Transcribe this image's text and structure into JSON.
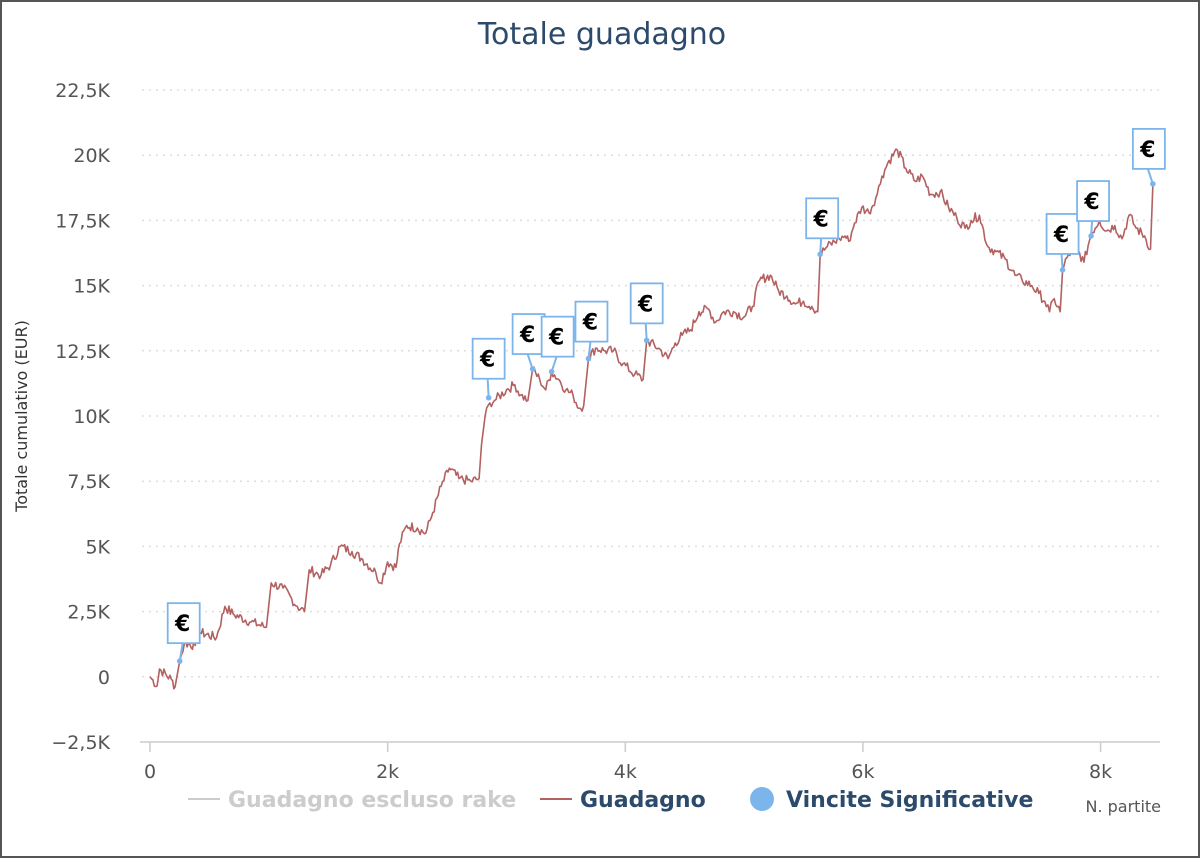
{
  "chart_data": {
    "type": "line",
    "title": "Totale guadagno",
    "ylabel": "Totale cumulativo (EUR)",
    "xlabel": "N. partite",
    "xlim": [
      0,
      8500
    ],
    "ylim": [
      -2500,
      22500
    ],
    "y_ticks": [
      {
        "value": -2500,
        "label": "−2,5K"
      },
      {
        "value": 0,
        "label": "0"
      },
      {
        "value": 2500,
        "label": "2,5K"
      },
      {
        "value": 5000,
        "label": "5K"
      },
      {
        "value": 7500,
        "label": "7,5K"
      },
      {
        "value": 10000,
        "label": "10K"
      },
      {
        "value": 12500,
        "label": "12,5K"
      },
      {
        "value": 15000,
        "label": "15K"
      },
      {
        "value": 17500,
        "label": "17,5K"
      },
      {
        "value": 20000,
        "label": "20K"
      },
      {
        "value": 22500,
        "label": "22,5K"
      }
    ],
    "x_ticks": [
      {
        "value": 0,
        "label": "0"
      },
      {
        "value": 2000,
        "label": "2k"
      },
      {
        "value": 4000,
        "label": "4k"
      },
      {
        "value": 6000,
        "label": "6k"
      },
      {
        "value": 8000,
        "label": "8k"
      }
    ],
    "grid": true,
    "legend_position": "bottom",
    "legend": [
      {
        "name": "Guadagno escluso rake",
        "color": "#cccccc",
        "marker": "line",
        "hidden": true
      },
      {
        "name": "Guadagno",
        "color": "#b36060",
        "marker": "line",
        "hidden": false
      },
      {
        "name": "Vincite Significative",
        "color": "#7cb5ec",
        "marker": "circle",
        "hidden": false
      }
    ],
    "series": [
      {
        "name": "Guadagno",
        "color": "#b36060",
        "points": [
          [
            0,
            0
          ],
          [
            60,
            -350
          ],
          [
            80,
            300
          ],
          [
            180,
            -100
          ],
          [
            210,
            -400
          ],
          [
            250,
            600
          ],
          [
            290,
            1300
          ],
          [
            380,
            1200
          ],
          [
            420,
            1700
          ],
          [
            560,
            1500
          ],
          [
            630,
            2700
          ],
          [
            700,
            2400
          ],
          [
            850,
            2100
          ],
          [
            980,
            1900
          ],
          [
            1020,
            3600
          ],
          [
            1120,
            3400
          ],
          [
            1240,
            2700
          ],
          [
            1300,
            2500
          ],
          [
            1340,
            4100
          ],
          [
            1440,
            3900
          ],
          [
            1520,
            4300
          ],
          [
            1600,
            5000
          ],
          [
            1700,
            4800
          ],
          [
            1790,
            4500
          ],
          [
            1900,
            4000
          ],
          [
            1940,
            3600
          ],
          [
            2000,
            4400
          ],
          [
            2070,
            4200
          ],
          [
            2100,
            5100
          ],
          [
            2160,
            5800
          ],
          [
            2250,
            5700
          ],
          [
            2320,
            5500
          ],
          [
            2380,
            6300
          ],
          [
            2450,
            7300
          ],
          [
            2520,
            8000
          ],
          [
            2600,
            7600
          ],
          [
            2700,
            7500
          ],
          [
            2770,
            7600
          ],
          [
            2790,
            8900
          ],
          [
            2820,
            10000
          ],
          [
            2860,
            10500
          ],
          [
            2900,
            10600
          ],
          [
            3000,
            11000
          ],
          [
            3070,
            11200
          ],
          [
            3120,
            10800
          ],
          [
            3180,
            10600
          ],
          [
            3220,
            11800
          ],
          [
            3280,
            11400
          ],
          [
            3330,
            11000
          ],
          [
            3380,
            11700
          ],
          [
            3440,
            11400
          ],
          [
            3500,
            11000
          ],
          [
            3560,
            10800
          ],
          [
            3610,
            10300
          ],
          [
            3650,
            10400
          ],
          [
            3690,
            12200
          ],
          [
            3750,
            12600
          ],
          [
            3830,
            12500
          ],
          [
            3900,
            12500
          ],
          [
            3980,
            12000
          ],
          [
            4080,
            11600
          ],
          [
            4150,
            11400
          ],
          [
            4180,
            12900
          ],
          [
            4280,
            12600
          ],
          [
            4360,
            12200
          ],
          [
            4420,
            12800
          ],
          [
            4480,
            13100
          ],
          [
            4550,
            13300
          ],
          [
            4620,
            14000
          ],
          [
            4700,
            14100
          ],
          [
            4760,
            13600
          ],
          [
            4830,
            14000
          ],
          [
            4910,
            14000
          ],
          [
            5000,
            13800
          ],
          [
            5070,
            14200
          ],
          [
            5130,
            15200
          ],
          [
            5220,
            15400
          ],
          [
            5290,
            14800
          ],
          [
            5360,
            14600
          ],
          [
            5430,
            14300
          ],
          [
            5500,
            14400
          ],
          [
            5570,
            14200
          ],
          [
            5620,
            14000
          ],
          [
            5640,
            16200
          ],
          [
            5700,
            16500
          ],
          [
            5800,
            16800
          ],
          [
            5850,
            16900
          ],
          [
            5880,
            16700
          ],
          [
            5930,
            17400
          ],
          [
            5990,
            18000
          ],
          [
            6050,
            17800
          ],
          [
            6120,
            18500
          ],
          [
            6160,
            19200
          ],
          [
            6220,
            19800
          ],
          [
            6290,
            20200
          ],
          [
            6360,
            19500
          ],
          [
            6440,
            19000
          ],
          [
            6500,
            19200
          ],
          [
            6570,
            18500
          ],
          [
            6650,
            18600
          ],
          [
            6720,
            18000
          ],
          [
            6790,
            17600
          ],
          [
            6860,
            17200
          ],
          [
            6910,
            17500
          ],
          [
            6980,
            17700
          ],
          [
            7050,
            16500
          ],
          [
            7120,
            16300
          ],
          [
            7200,
            16000
          ],
          [
            7280,
            15400
          ],
          [
            7340,
            15200
          ],
          [
            7420,
            15000
          ],
          [
            7480,
            14700
          ],
          [
            7530,
            14400
          ],
          [
            7570,
            14000
          ],
          [
            7610,
            14500
          ],
          [
            7660,
            14000
          ],
          [
            7680,
            15600
          ],
          [
            7730,
            16200
          ],
          [
            7800,
            16400
          ],
          [
            7860,
            15900
          ],
          [
            7920,
            17000
          ],
          [
            7990,
            17500
          ],
          [
            8050,
            17100
          ],
          [
            8120,
            17300
          ],
          [
            8180,
            16800
          ],
          [
            8240,
            17700
          ],
          [
            8300,
            17200
          ],
          [
            8370,
            16900
          ],
          [
            8420,
            16400
          ],
          [
            8440,
            18900
          ]
        ]
      },
      {
        "name": "Vincite Significative",
        "color": "#7cb5ec",
        "flag_text": "€",
        "points": [
          [
            250,
            600
          ],
          [
            2850,
            10700
          ],
          [
            3220,
            11800
          ],
          [
            3380,
            11700
          ],
          [
            3690,
            12200
          ],
          [
            4180,
            12900
          ],
          [
            5640,
            16200
          ],
          [
            7680,
            15600
          ],
          [
            7920,
            16900
          ],
          [
            8440,
            18900
          ]
        ]
      }
    ]
  }
}
